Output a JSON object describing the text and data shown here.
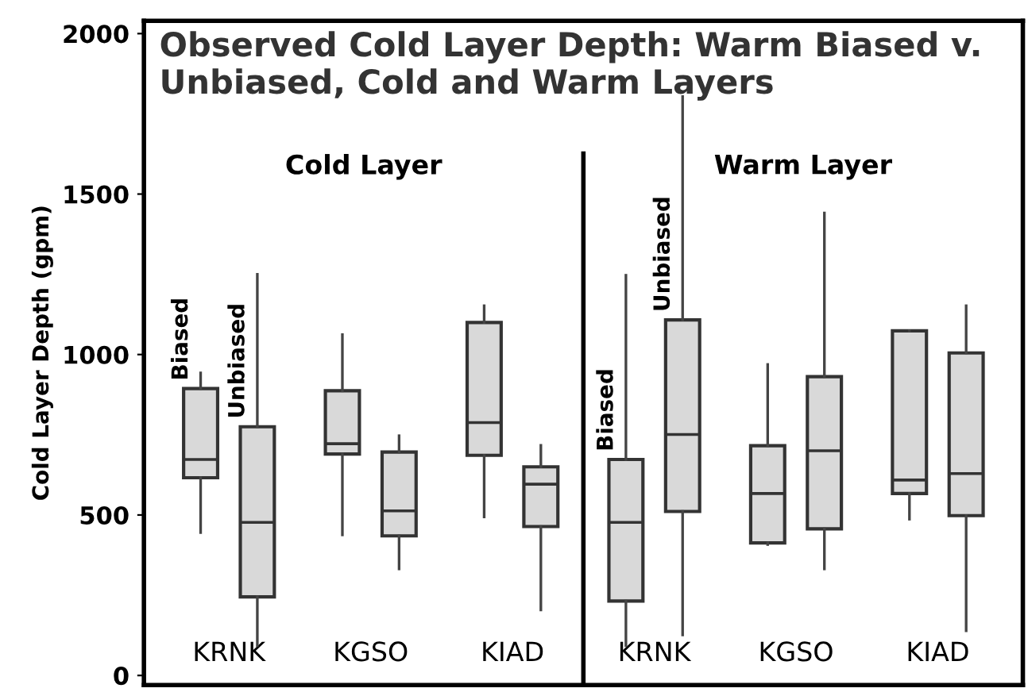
{
  "chart_data": {
    "type": "box",
    "title": "Observed Cold Layer Depth: Warm Biased v. Unbiased, Cold and Warm Layers",
    "ylabel": "Cold Layer Depth (gpm)",
    "categories": [
      "KRNK",
      "KGSO",
      "KIAD",
      "KRNK",
      "KGSO",
      "KIAD"
    ],
    "ylim": [
      -30,
      2040
    ],
    "yticks": [
      0,
      500,
      1000,
      1500,
      2000
    ],
    "grid": false,
    "annotations": [
      "Cold Layer",
      "Warm Layer"
    ],
    "series": [
      {
        "name": "Biased",
        "color": "#d9d9d9",
        "boxes": [
          {
            "low": 445,
            "q1": 616,
            "median": 673,
            "q3": 894,
            "high": 943
          },
          {
            "low": 438,
            "q1": 690,
            "median": 722,
            "q3": 887,
            "high": 1062
          },
          {
            "low": 494,
            "q1": 686,
            "median": 788,
            "q3": 1100,
            "high": 1152
          },
          {
            "low": 93,
            "q1": 232,
            "median": 477,
            "q3": 673,
            "high": 1247
          },
          {
            "low": 408,
            "q1": 413,
            "median": 567,
            "q3": 716,
            "high": 969
          },
          {
            "low": 487,
            "q1": 567,
            "median": 609,
            "q3": 1074,
            "high": 1074
          }
        ]
      },
      {
        "name": "Unbiased",
        "color": "#d9d9d9",
        "boxes": [
          {
            "low": 93,
            "q1": 245,
            "median": 477,
            "q3": 775,
            "high": 1250
          },
          {
            "low": 332,
            "q1": 435,
            "median": 513,
            "q3": 696,
            "high": 747
          },
          {
            "low": 204,
            "q1": 464,
            "median": 596,
            "q3": 650,
            "high": 717
          },
          {
            "low": 126,
            "q1": 511,
            "median": 751,
            "q3": 1108,
            "high": 1804
          },
          {
            "low": 332,
            "q1": 457,
            "median": 700,
            "q3": 931,
            "high": 1441
          },
          {
            "low": 139,
            "q1": 498,
            "median": 629,
            "q3": 1005,
            "high": 1152
          }
        ]
      }
    ]
  }
}
